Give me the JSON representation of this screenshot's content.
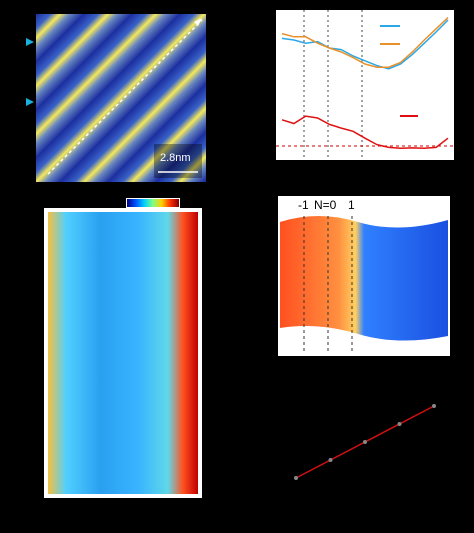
{
  "panel_a": {
    "scale_bar_label": "2.8nm"
  },
  "panel_c": {
    "colorbar_colors": [
      "#000080",
      "#0050ff",
      "#00d0ff",
      "#80ff80",
      "#ffd000",
      "#ff3000",
      "#800000"
    ]
  },
  "panel_d": {
    "labels": [
      "-1",
      "N=0",
      "1"
    ]
  },
  "chart_data": [
    {
      "type": "line",
      "series": [
        {
          "values": [
            0.72,
            0.7,
            0.66,
            0.68,
            0.6,
            0.58,
            0.5,
            0.44,
            0.38,
            0.34,
            0.4,
            0.52,
            0.66,
            0.8,
            0.95
          ],
          "color": "#2aa8e6"
        },
        {
          "values": [
            0.78,
            0.74,
            0.74,
            0.66,
            0.6,
            0.55,
            0.48,
            0.4,
            0.36,
            0.36,
            0.42,
            0.55,
            0.7,
            0.84,
            0.98
          ],
          "color": "#e8902a"
        }
      ]
    },
    {
      "type": "line",
      "series": [
        {
          "values": [
            0.7,
            0.62,
            0.78,
            0.74,
            0.6,
            0.52,
            0.45,
            0.3,
            0.16,
            0.1,
            0.08,
            0.09,
            0.08,
            0.1,
            0.3
          ],
          "color": "#e01010"
        }
      ]
    },
    {
      "type": "scatter",
      "series": [
        {
          "x": [
            1,
            2,
            3,
            4,
            5
          ],
          "y": [
            1,
            2,
            3,
            4,
            5
          ],
          "color": "#d01010"
        }
      ]
    }
  ]
}
